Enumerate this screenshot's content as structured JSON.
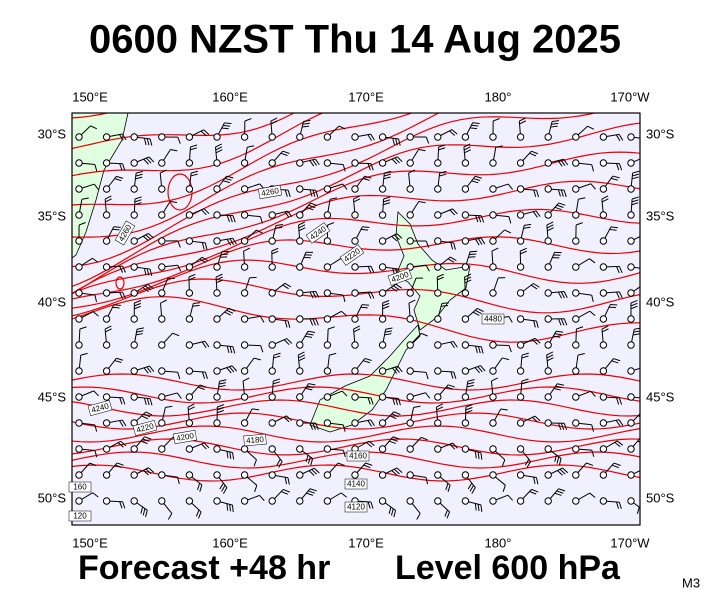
{
  "title": "0600 NZST Thu 14 Aug 2025",
  "footer": {
    "forecast": "Forecast +48 hr",
    "level": "Level 600 hPa",
    "code": "M3"
  },
  "map": {
    "lon_labels": [
      "150°E",
      "160°E",
      "170°E",
      "180°",
      "170°W"
    ],
    "lat_labels": [
      "30°S",
      "35°S",
      "40°S",
      "45°S",
      "50°S"
    ],
    "contour_labels": [
      4260,
      4260,
      4240,
      4220,
      4200,
      4480,
      4240,
      4220,
      4200,
      4180,
      4160,
      4140,
      4120,
      160,
      120
    ]
  }
}
